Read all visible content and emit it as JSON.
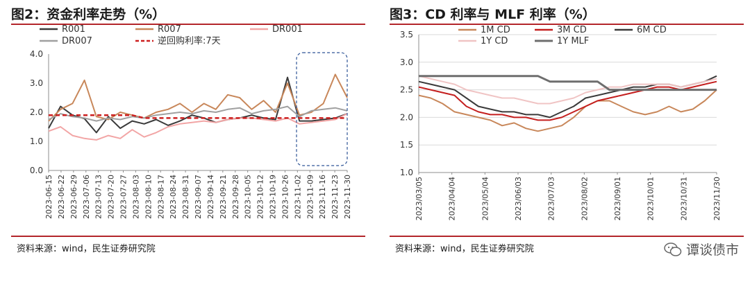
{
  "left": {
    "title": "图2：资金利率走势（%）",
    "source": "资料来源：wind，民生证券研究院",
    "chart_data": {
      "type": "line",
      "x_tick_labels": [
        "2023-06-15",
        "2023-06-22",
        "2023-06-29",
        "2023-07-06",
        "2023-07-13",
        "2023-07-20",
        "2023-07-27",
        "2023-08-03",
        "2023-08-10",
        "2023-08-17",
        "2023-08-24",
        "2023-08-31",
        "2023-09-07",
        "2023-09-14",
        "2023-09-21",
        "2023-09-28",
        "2023-10-05",
        "2023-10-12",
        "2023-10-19",
        "2023-10-26",
        "2023-11-02",
        "2023-11-09",
        "2023-11-16",
        "2023-11-23",
        "2023-11-30"
      ],
      "y_ticks": [
        "0.0",
        "1.0",
        "2.0",
        "3.0",
        "4.0"
      ],
      "ylim": [
        0,
        4
      ],
      "legend": [
        "R001",
        "R007",
        "DR001",
        "DR007",
        "逆回购利率:7天"
      ],
      "series": [
        {
          "name": "R001",
          "color": "#3a3a3a",
          "values": [
            1.45,
            2.2,
            1.9,
            1.78,
            1.3,
            1.85,
            1.45,
            1.7,
            1.6,
            1.75,
            1.55,
            1.7,
            1.9,
            1.8,
            1.65,
            1.75,
            1.8,
            1.9,
            1.8,
            1.75,
            3.2,
            1.7,
            1.7,
            1.75,
            1.8,
            1.95
          ]
        },
        {
          "name": "R007",
          "color": "#c8875a",
          "values": [
            1.7,
            2.1,
            2.3,
            3.1,
            1.85,
            1.75,
            2.0,
            1.9,
            1.8,
            2.0,
            2.1,
            2.3,
            2.0,
            2.3,
            2.1,
            2.6,
            2.5,
            2.1,
            2.4,
            2.0,
            3.0,
            1.9,
            2.0,
            2.3,
            3.3,
            2.5
          ]
        },
        {
          "name": "DR001",
          "color": "#f2a5a5",
          "values": [
            1.35,
            1.5,
            1.2,
            1.1,
            1.05,
            1.2,
            1.1,
            1.4,
            1.15,
            1.3,
            1.5,
            1.6,
            1.65,
            1.7,
            1.65,
            1.75,
            1.8,
            1.8,
            1.75,
            1.7,
            1.8,
            1.6,
            1.65,
            1.7,
            1.75,
            1.95
          ]
        },
        {
          "name": "DR007",
          "color": "#a0a0a0",
          "values": [
            1.75,
            1.95,
            1.85,
            1.8,
            1.7,
            1.8,
            1.75,
            1.85,
            1.8,
            1.9,
            1.95,
            2.0,
            1.95,
            2.05,
            2.0,
            2.1,
            2.15,
            1.95,
            2.05,
            2.1,
            2.2,
            1.85,
            2.05,
            2.1,
            2.15,
            2.05
          ]
        },
        {
          "name": "逆回购利率:7天",
          "color": "#cc1f1f",
          "dashed": true,
          "values": [
            1.9,
            1.9,
            1.9,
            1.9,
            1.9,
            1.9,
            1.9,
            1.9,
            1.8,
            1.8,
            1.8,
            1.8,
            1.8,
            1.8,
            1.8,
            1.8,
            1.8,
            1.8,
            1.8,
            1.8,
            1.8,
            1.8,
            1.8,
            1.8,
            1.8,
            1.8
          ]
        }
      ]
    }
  },
  "right": {
    "title": "图3：CD 利率与 MLF 利率（%）",
    "source": "资料来源：wind，民生证券研究院",
    "chart_data": {
      "type": "line",
      "x_tick_labels": [
        "2023/03/05",
        "2023/04/04",
        "2023/05/04",
        "2023/06/03",
        "2023/07/03",
        "2023/08/02",
        "2023/09/01",
        "2023/10/01",
        "2023/10/31",
        "2023/11/30"
      ],
      "y_ticks": [
        "1.0",
        "1.5",
        "2.0",
        "2.5",
        "3.0",
        "3.5"
      ],
      "ylim": [
        1.0,
        3.5
      ],
      "legend": [
        "1M CD",
        "3M CD",
        "6M CD",
        "1Y CD",
        "1Y MLF"
      ],
      "series": [
        {
          "name": "1M CD",
          "color": "#c8875a",
          "values": [
            2.4,
            2.35,
            2.25,
            2.1,
            2.05,
            2.0,
            1.95,
            1.85,
            1.9,
            1.8,
            1.75,
            1.8,
            1.85,
            2.0,
            2.2,
            2.3,
            2.3,
            2.2,
            2.1,
            2.05,
            2.1,
            2.2,
            2.1,
            2.15,
            2.3,
            2.5
          ]
        },
        {
          "name": "3M CD",
          "color": "#c41e1e",
          "values": [
            2.55,
            2.5,
            2.45,
            2.4,
            2.2,
            2.1,
            2.05,
            2.05,
            2.0,
            2.0,
            1.95,
            1.95,
            2.0,
            2.1,
            2.2,
            2.3,
            2.35,
            2.4,
            2.45,
            2.5,
            2.55,
            2.55,
            2.5,
            2.55,
            2.6,
            2.65
          ]
        },
        {
          "name": "6M CD",
          "color": "#3a3a3a",
          "values": [
            2.65,
            2.6,
            2.55,
            2.5,
            2.35,
            2.2,
            2.15,
            2.1,
            2.1,
            2.05,
            2.05,
            2.0,
            2.1,
            2.2,
            2.35,
            2.4,
            2.45,
            2.5,
            2.55,
            2.55,
            2.6,
            2.6,
            2.55,
            2.6,
            2.65,
            2.75
          ]
        },
        {
          "name": "1Y CD",
          "color": "#f0c4c4",
          "values": [
            2.75,
            2.7,
            2.65,
            2.6,
            2.5,
            2.45,
            2.4,
            2.35,
            2.35,
            2.3,
            2.25,
            2.25,
            2.3,
            2.35,
            2.45,
            2.5,
            2.55,
            2.55,
            2.6,
            2.6,
            2.6,
            2.6,
            2.55,
            2.6,
            2.65,
            2.7
          ]
        },
        {
          "name": "1Y MLF",
          "color": "#6e6e6e",
          "thick": true,
          "values": [
            2.75,
            2.75,
            2.75,
            2.75,
            2.75,
            2.75,
            2.75,
            2.75,
            2.75,
            2.75,
            2.75,
            2.65,
            2.65,
            2.65,
            2.65,
            2.65,
            2.5,
            2.5,
            2.5,
            2.5,
            2.5,
            2.5,
            2.5,
            2.5,
            2.5,
            2.5
          ]
        }
      ]
    }
  },
  "watermark": "谭谈债市"
}
